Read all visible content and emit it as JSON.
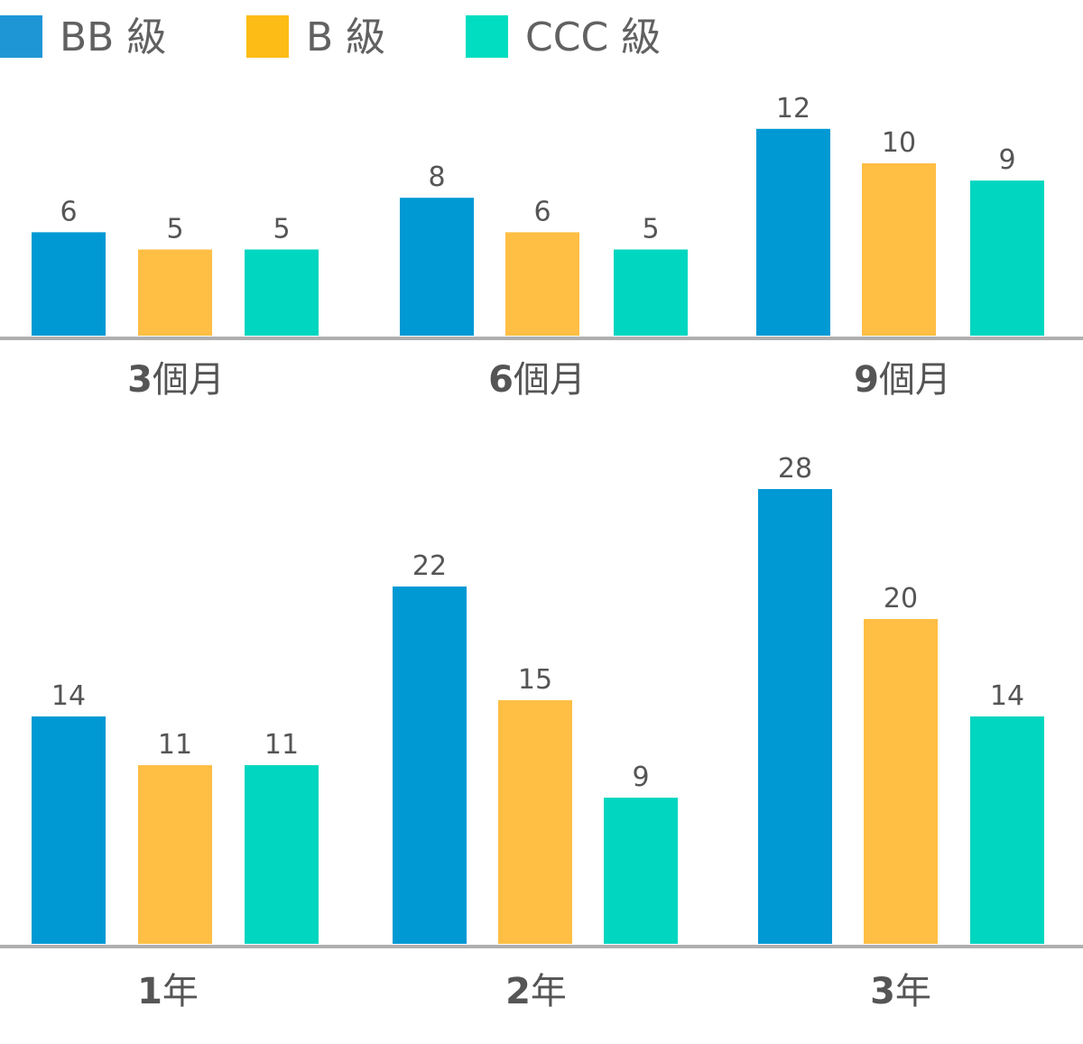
{
  "chart_data": [
    {
      "type": "bar",
      "categories": [
        {
          "num": "3",
          "suffix": "個月"
        },
        {
          "num": "6",
          "suffix": "個月"
        },
        {
          "num": "9",
          "suffix": "個月"
        }
      ],
      "series": [
        {
          "name": "BB 級",
          "color": "#0099D4",
          "values": [
            6,
            8,
            12
          ]
        },
        {
          "name": "B 級",
          "color": "#FFBE44",
          "values": [
            5,
            6,
            10
          ]
        },
        {
          "name": "CCC 級",
          "color": "#00D6C0",
          "values": [
            5,
            5,
            9
          ]
        }
      ]
    },
    {
      "type": "bar",
      "categories": [
        {
          "num": "1",
          "suffix": "年"
        },
        {
          "num": "2",
          "suffix": "年"
        },
        {
          "num": "3",
          "suffix": "年"
        }
      ],
      "series": [
        {
          "name": "BB 級",
          "color": "#0099D4",
          "values": [
            14,
            22,
            28
          ]
        },
        {
          "name": "B 級",
          "color": "#FFBE44",
          "values": [
            11,
            15,
            20
          ]
        },
        {
          "name": "CCC 級",
          "color": "#00D6C0",
          "values": [
            11,
            9,
            14
          ]
        }
      ]
    }
  ],
  "legend": [
    {
      "label": "BB 級",
      "color": "#1E96D6"
    },
    {
      "label": "B 級",
      "color": "#FDBC16"
    },
    {
      "label": "CCC 級",
      "color": "#00DDC0"
    }
  ],
  "colors": {
    "axis": "#AFAFAF",
    "text": "#555555"
  }
}
